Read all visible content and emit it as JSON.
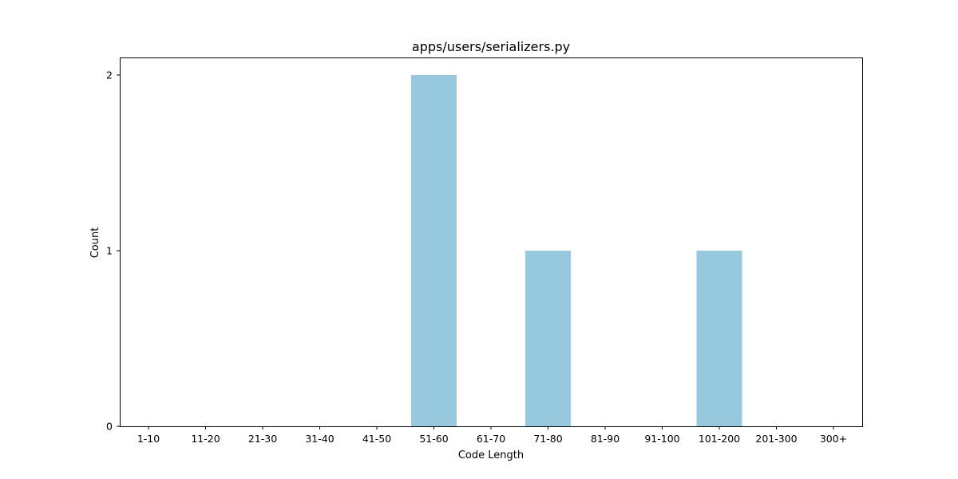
{
  "chart_data": {
    "type": "bar",
    "title": "apps/users/serializers.py",
    "xlabel": "Code Length",
    "ylabel": "Count",
    "categories": [
      "1-10",
      "11-20",
      "21-30",
      "31-40",
      "41-50",
      "51-60",
      "61-70",
      "71-80",
      "81-90",
      "91-100",
      "101-200",
      "201-300",
      "300+"
    ],
    "values": [
      0,
      0,
      0,
      0,
      0,
      2,
      0,
      1,
      0,
      0,
      1,
      0,
      0
    ],
    "yticks": [
      0,
      1,
      2
    ],
    "ylim": [
      0,
      2.1
    ],
    "bar_color": "#96c9de",
    "grid": false,
    "legend": false
  }
}
